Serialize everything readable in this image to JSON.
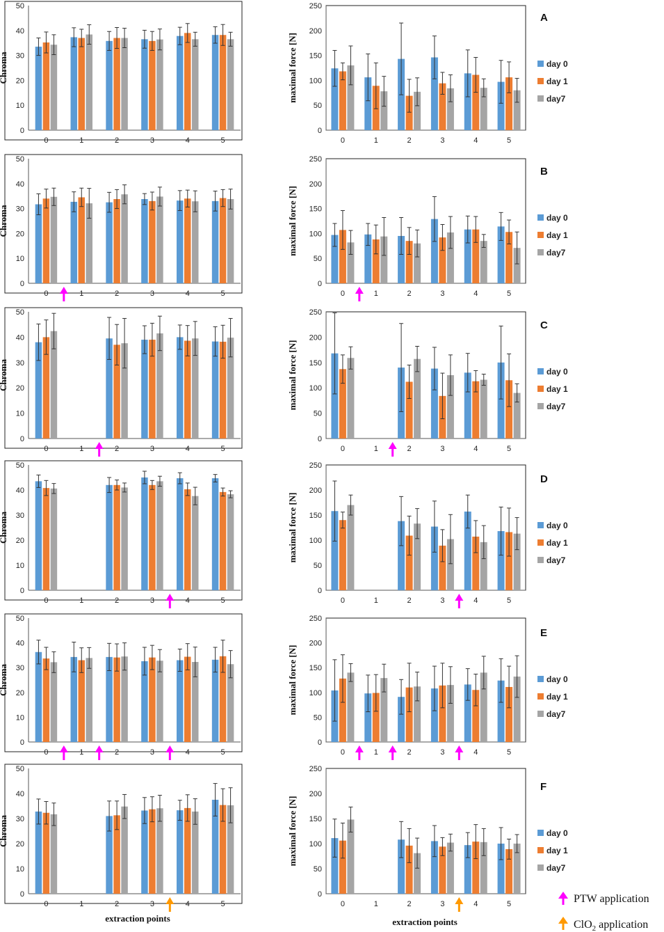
{
  "figure": {
    "x_axis_label": "extraction points",
    "legend": [
      "day 0",
      "day 1",
      "day7"
    ],
    "key": {
      "ptw": "PTW application",
      "clo2_main": "ClO",
      "clo2_sub": "2",
      "clo2_rest": " application"
    }
  },
  "colors": {
    "day0": "#5B9BD5",
    "day1": "#ED7D31",
    "day7": "#A5A5A5",
    "ptw_arrow": "#FF00FF",
    "clo2_arrow": "#FF9900"
  },
  "chart_data": [
    {
      "panel": "A",
      "side": "left",
      "type": "bar",
      "ylabel": "Chroma",
      "ylim": [
        0,
        50
      ],
      "yticks": [
        0,
        10,
        20,
        30,
        40,
        50
      ],
      "categories": [
        "0",
        "1",
        "2",
        "3",
        "4",
        "5"
      ],
      "arrows": [],
      "series": [
        {
          "name": "day 0",
          "values": [
            33.5,
            37.3,
            35.8,
            36.5,
            37.8,
            38.2
          ],
          "errors": [
            3.5,
            3.8,
            3.8,
            3.6,
            3.5,
            3.3
          ]
        },
        {
          "name": "day 1",
          "values": [
            35.2,
            37,
            37,
            35.8,
            39,
            38.2
          ],
          "errors": [
            4.2,
            3.5,
            4.2,
            3.8,
            3.8,
            4.2
          ]
        },
        {
          "name": "day7",
          "values": [
            34.3,
            38.4,
            37,
            36.4,
            36.5,
            36.5
          ],
          "errors": [
            4,
            3.9,
            3.9,
            4.2,
            2.8,
            2.8
          ]
        }
      ]
    },
    {
      "panel": "A",
      "side": "right",
      "type": "bar",
      "ylabel": "maximal force [N]",
      "ylim": [
        0,
        250
      ],
      "yticks": [
        0,
        50,
        100,
        150,
        200,
        250
      ],
      "categories": [
        "0",
        "1",
        "2",
        "3",
        "4",
        "5"
      ],
      "arrows": [],
      "series": [
        {
          "name": "day 0",
          "values": [
            124,
            106,
            143,
            146,
            114,
            97
          ],
          "errors": [
            36,
            47,
            72,
            43,
            47,
            43
          ]
        },
        {
          "name": "day 1",
          "values": [
            118,
            89,
            69,
            94,
            111,
            106
          ],
          "errors": [
            17,
            46,
            33,
            22,
            35,
            31
          ]
        },
        {
          "name": "day7",
          "values": [
            130,
            78,
            77,
            84,
            85,
            80
          ],
          "errors": [
            39,
            30,
            28,
            27,
            18,
            24
          ]
        }
      ]
    },
    {
      "panel": "B",
      "side": "left",
      "type": "bar",
      "ylabel": "Chroma",
      "ylim": [
        0,
        50
      ],
      "yticks": [
        0,
        10,
        20,
        30,
        40,
        50
      ],
      "categories": [
        "0",
        "1",
        "2",
        "3",
        "4",
        "5"
      ],
      "arrows": [
        {
          "after": 0,
          "color": "ptw"
        }
      ],
      "series": [
        {
          "name": "day 0",
          "values": [
            31.7,
            32.7,
            32.5,
            33.8,
            33.2,
            33
          ],
          "errors": [
            4.2,
            4,
            4,
            2.2,
            4,
            4
          ]
        },
        {
          "name": "day 1",
          "values": [
            34,
            34.5,
            33.8,
            33,
            34,
            34.2
          ],
          "errors": [
            3.8,
            3.7,
            3.8,
            3.6,
            3.4,
            3.4
          ]
        },
        {
          "name": "day7",
          "values": [
            34.7,
            32.1,
            35.7,
            34.8,
            32.9,
            33.8
          ],
          "errors": [
            3.5,
            6,
            3.8,
            3.8,
            4.2,
            4
          ]
        }
      ]
    },
    {
      "panel": "B",
      "side": "right",
      "type": "bar",
      "ylabel": "maximal force [N]",
      "ylim": [
        0,
        250
      ],
      "yticks": [
        0,
        50,
        100,
        150,
        200,
        250
      ],
      "categories": [
        "0",
        "1",
        "2",
        "3",
        "4",
        "5"
      ],
      "arrows": [
        {
          "after": 0,
          "color": "ptw"
        }
      ],
      "series": [
        {
          "name": "day 0",
          "values": [
            97,
            98,
            95,
            129,
            108,
            114
          ],
          "errors": [
            23,
            22,
            37,
            45,
            27,
            28
          ]
        },
        {
          "name": "day 1",
          "values": [
            107,
            88,
            85,
            92,
            108,
            103
          ],
          "errors": [
            39,
            29,
            27,
            26,
            26,
            24
          ]
        },
        {
          "name": "day7",
          "values": [
            82,
            94,
            80,
            102,
            85,
            71
          ],
          "errors": [
            24,
            38,
            27,
            32,
            13,
            32
          ]
        }
      ]
    },
    {
      "panel": "C",
      "side": "left",
      "type": "bar",
      "ylabel": "Chroma",
      "ylim": [
        0,
        50
      ],
      "yticks": [
        0,
        10,
        20,
        30,
        40,
        50
      ],
      "categories": [
        "0",
        "1",
        "2",
        "3",
        "4",
        "5"
      ],
      "arrows": [
        {
          "after": 1,
          "color": "ptw"
        }
      ],
      "series": [
        {
          "name": "day 0",
          "values": [
            38,
            null,
            39.5,
            39,
            40,
            38.3
          ],
          "errors": [
            7.2,
            null,
            8.3,
            5.5,
            4.8,
            5.8
          ]
        },
        {
          "name": "day 1",
          "values": [
            40,
            null,
            37,
            39,
            38.6,
            38.2
          ],
          "errors": [
            6.8,
            null,
            8,
            6.5,
            6,
            6.5
          ]
        },
        {
          "name": "day7",
          "values": [
            42.4,
            null,
            37.6,
            41.5,
            39.5,
            39.8
          ],
          "errors": [
            7,
            null,
            9.8,
            6.8,
            6.7,
            7.6
          ]
        }
      ]
    },
    {
      "panel": "C",
      "side": "right",
      "type": "bar",
      "ylabel": "maximal force [N]",
      "ylim": [
        0,
        250
      ],
      "yticks": [
        0,
        50,
        100,
        150,
        200,
        250
      ],
      "categories": [
        "0",
        "1",
        "2",
        "3",
        "4",
        "5"
      ],
      "arrows": [
        {
          "after": 1,
          "color": "ptw"
        }
      ],
      "series": [
        {
          "name": "day 0",
          "values": [
            168,
            null,
            140,
            138,
            130,
            150
          ],
          "errors": [
            80,
            null,
            87,
            42,
            38,
            72
          ]
        },
        {
          "name": "day 1",
          "values": [
            137,
            null,
            112,
            84,
            113,
            115
          ],
          "errors": [
            28,
            null,
            33,
            45,
            21,
            52
          ]
        },
        {
          "name": "day7",
          "values": [
            159,
            null,
            157,
            125,
            116,
            90
          ],
          "errors": [
            22,
            null,
            25,
            40,
            11,
            18
          ]
        }
      ]
    },
    {
      "panel": "D",
      "side": "left",
      "type": "bar",
      "ylabel": "Chroma",
      "ylim": [
        0,
        50
      ],
      "yticks": [
        0,
        10,
        20,
        30,
        40,
        50
      ],
      "categories": [
        "0",
        "1",
        "2",
        "3",
        "4",
        "5"
      ],
      "arrows": [
        {
          "after": 3,
          "color": "ptw"
        }
      ],
      "series": [
        {
          "name": "day 0",
          "values": [
            43.5,
            null,
            42,
            45,
            44.7,
            44.7
          ],
          "errors": [
            2.5,
            null,
            3,
            2.5,
            2.2,
            1.5
          ]
        },
        {
          "name": "day 1",
          "values": [
            40.8,
            null,
            42,
            42,
            40.3,
            39.2
          ],
          "errors": [
            3,
            null,
            2,
            1.8,
            2.5,
            1.6
          ]
        },
        {
          "name": "day7",
          "values": [
            40.6,
            null,
            41,
            43.5,
            37.6,
            38.3
          ],
          "errors": [
            2,
            null,
            1.8,
            2,
            3.5,
            1.4
          ]
        }
      ]
    },
    {
      "panel": "D",
      "side": "right",
      "type": "bar",
      "ylabel": "maximal force [N]",
      "ylim": [
        0,
        250
      ],
      "yticks": [
        0,
        50,
        100,
        150,
        200,
        250
      ],
      "categories": [
        "0",
        "1",
        "2",
        "3",
        "4",
        "5"
      ],
      "arrows": [
        {
          "after": 3,
          "color": "ptw"
        }
      ],
      "series": [
        {
          "name": "day 0",
          "values": [
            158,
            null,
            138,
            127,
            157,
            118
          ],
          "errors": [
            60,
            null,
            49,
            51,
            33,
            48
          ]
        },
        {
          "name": "day 1",
          "values": [
            140,
            null,
            109,
            89,
            107,
            116
          ],
          "errors": [
            16,
            null,
            39,
            32,
            32,
            48
          ]
        },
        {
          "name": "day7",
          "values": [
            170,
            null,
            133,
            102,
            96,
            113
          ],
          "errors": [
            20,
            null,
            30,
            49,
            33,
            32
          ]
        }
      ]
    },
    {
      "panel": "E",
      "side": "left",
      "type": "bar",
      "ylabel": "Chroma",
      "ylim": [
        0,
        50
      ],
      "yticks": [
        0,
        10,
        20,
        30,
        40,
        50
      ],
      "categories": [
        "0",
        "1",
        "2",
        "3",
        "4",
        "5"
      ],
      "arrows": [
        {
          "after": 0,
          "color": "ptw"
        },
        {
          "after": 1,
          "color": "ptw"
        },
        {
          "after": 3,
          "color": "ptw"
        }
      ],
      "series": [
        {
          "name": "day 0",
          "values": [
            36.3,
            34.3,
            34.3,
            32.6,
            33,
            33.2
          ],
          "errors": [
            4.8,
            6,
            5.5,
            5.6,
            4.5,
            5
          ]
        },
        {
          "name": "day 1",
          "values": [
            33.7,
            33,
            34.1,
            34.1,
            34.4,
            34.6
          ],
          "errors": [
            4.5,
            5,
            5.5,
            4.9,
            5.3,
            6.5
          ]
        },
        {
          "name": "day7",
          "values": [
            32.2,
            33.9,
            34.5,
            32.8,
            32.3,
            31.4
          ],
          "errors": [
            4.2,
            4.2,
            5.5,
            4.5,
            6,
            5.5
          ]
        }
      ]
    },
    {
      "panel": "E",
      "side": "right",
      "type": "bar",
      "ylabel": "maximal force [N]",
      "ylim": [
        0,
        250
      ],
      "yticks": [
        0,
        50,
        100,
        150,
        200,
        250
      ],
      "categories": [
        "0",
        "1",
        "2",
        "3",
        "4",
        "5"
      ],
      "arrows": [
        {
          "after": 0,
          "color": "ptw"
        },
        {
          "after": 1,
          "color": "ptw"
        },
        {
          "after": 3,
          "color": "ptw"
        }
      ],
      "series": [
        {
          "name": "day 0",
          "values": [
            104,
            98,
            91,
            108,
            116,
            124
          ],
          "errors": [
            62,
            37,
            35,
            45,
            32,
            44
          ]
        },
        {
          "name": "day 1",
          "values": [
            128,
            99,
            110,
            114,
            105,
            111
          ],
          "errors": [
            48,
            37,
            49,
            45,
            32,
            42
          ]
        },
        {
          "name": "day7",
          "values": [
            140,
            129,
            112,
            115,
            140,
            132
          ],
          "errors": [
            18,
            28,
            29,
            37,
            33,
            42
          ]
        }
      ]
    },
    {
      "panel": "F",
      "side": "left",
      "type": "bar",
      "ylabel": "Chroma",
      "ylim": [
        0,
        50
      ],
      "yticks": [
        0,
        10,
        20,
        30,
        40,
        50
      ],
      "categories": [
        "0",
        "1",
        "2",
        "3",
        "4",
        "5"
      ],
      "arrows": [
        {
          "after": 3,
          "color": "clo2"
        }
      ],
      "series": [
        {
          "name": "day 0",
          "values": [
            32.8,
            null,
            31,
            33.2,
            33.3,
            37.5
          ],
          "errors": [
            5,
            null,
            6,
            5.2,
            4,
            6.5
          ]
        },
        {
          "name": "day 1",
          "values": [
            32.3,
            null,
            31.3,
            33.7,
            34.2,
            35.4
          ],
          "errors": [
            4.5,
            null,
            5.7,
            5,
            5.3,
            6.5
          ]
        },
        {
          "name": "day7",
          "values": [
            31.7,
            null,
            34.8,
            34.1,
            32.8,
            35.3
          ],
          "errors": [
            4.5,
            null,
            4.8,
            5.2,
            5.1,
            7
          ]
        }
      ]
    },
    {
      "panel": "F",
      "side": "right",
      "type": "bar",
      "ylabel": "maximal force [N]",
      "ylim": [
        0,
        250
      ],
      "yticks": [
        0,
        50,
        100,
        150,
        200,
        250
      ],
      "categories": [
        "0",
        "1",
        "2",
        "3",
        "4",
        "5"
      ],
      "arrows": [
        {
          "after": 3,
          "color": "clo2"
        }
      ],
      "series": [
        {
          "name": "day 0",
          "values": [
            111,
            null,
            108,
            105,
            97,
            100
          ],
          "errors": [
            38,
            null,
            36,
            31,
            25,
            32
          ]
        },
        {
          "name": "day 1",
          "values": [
            106,
            null,
            96,
            94,
            104,
            89
          ],
          "errors": [
            35,
            null,
            34,
            18,
            34,
            20
          ]
        },
        {
          "name": "day7",
          "values": [
            148,
            null,
            81,
            102,
            103,
            100
          ],
          "errors": [
            25,
            null,
            30,
            17,
            27,
            18
          ]
        }
      ]
    }
  ]
}
